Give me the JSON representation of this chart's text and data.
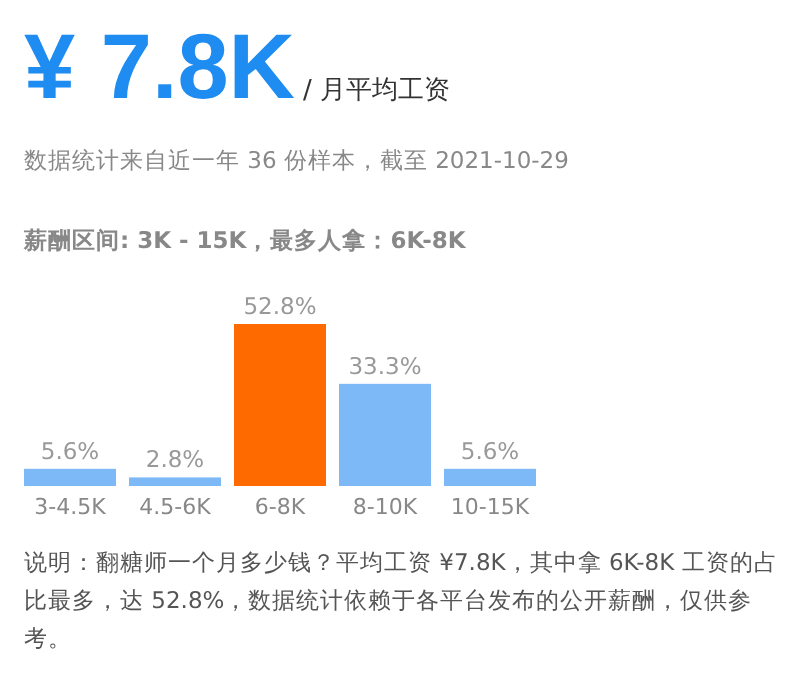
{
  "chart_data": {
    "type": "bar",
    "title": "¥ 7.8K",
    "subtitle": "/ 月平均工资",
    "annotations": [
      "数据统计来自近一年 36 份样本，截至 2021-10-29",
      "薪酬区间: 3K - 15K，最多人拿：6K-8K",
      "说明：翻糖师一个月多少钱？平均工资 ¥7.8K，其中拿 6K-8K 工资的占比最多，达 52.8%，数据统计依赖于各平台发布的公开薪酬，仅供参考。"
    ],
    "categories": [
      "3-4.5K",
      "4.5-6K",
      "6-8K",
      "8-10K",
      "10-15K"
    ],
    "values": [
      5.6,
      2.8,
      52.8,
      33.3,
      5.6
    ],
    "colors": [
      "#7db9f6",
      "#7db9f6",
      "#ff6a00",
      "#7db9f6",
      "#7db9f6"
    ],
    "value_labels": [
      "5.6%",
      "2.8%",
      "52.8%",
      "33.3%",
      "5.6%"
    ]
  }
}
